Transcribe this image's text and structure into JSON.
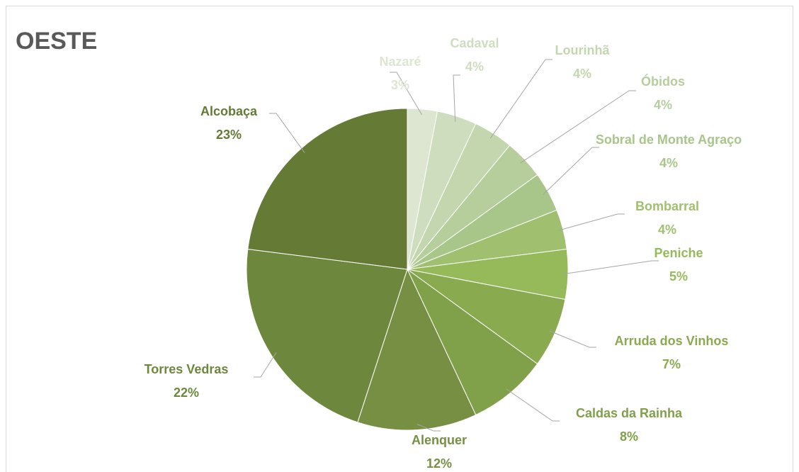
{
  "chart_data": {
    "type": "pie",
    "title": "OESTE",
    "categories": [
      "Nazaré",
      "Cadaval",
      "Lourinhã",
      "Óbidos",
      "Sobral de Monte Agraço",
      "Bombarral",
      "Peniche",
      "Arruda dos Vinhos",
      "Caldas da Rainha",
      "Alenquer",
      "Torres Vedras",
      "Alcobaça"
    ],
    "values": [
      3,
      4,
      4,
      4,
      4,
      4,
      5,
      7,
      8,
      12,
      22,
      23
    ],
    "value_labels": [
      "3%",
      "4%",
      "4%",
      "4%",
      "4%",
      "4%",
      "5%",
      "7%",
      "8%",
      "12%",
      "22%",
      "23%"
    ],
    "colors": [
      "#dde6d1",
      "#cfddbf",
      "#c3d6ae",
      "#b6cd9c",
      "#a9c68a",
      "#a0c06f",
      "#96b95a",
      "#8aaa50",
      "#80a04a",
      "#768f43",
      "#6d883c",
      "#647a35"
    ]
  }
}
